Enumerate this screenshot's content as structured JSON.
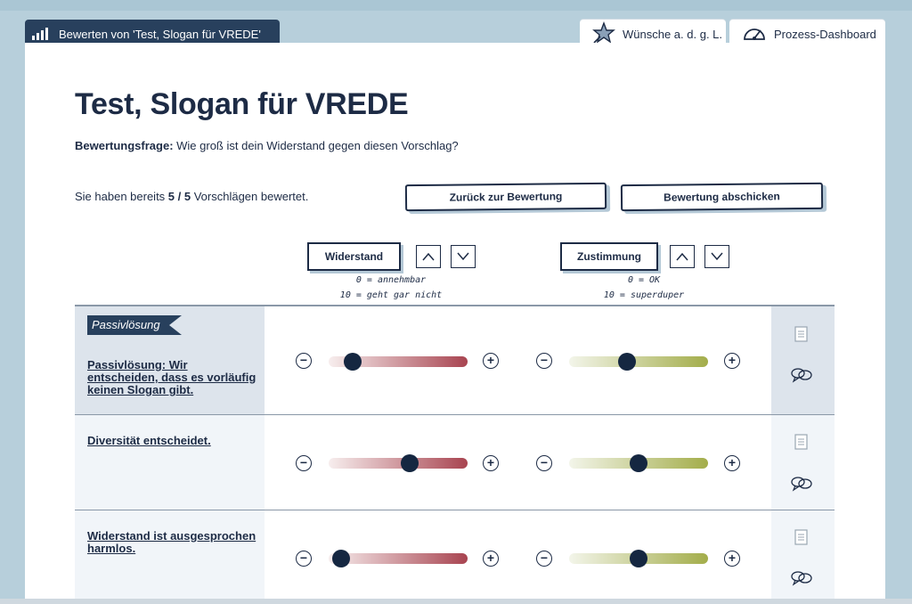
{
  "tabs": {
    "left_label": "Bewerten von 'Test, Slogan für VREDE'",
    "wishes_label": "Wünsche a. d. g. L.",
    "dashboard_label": "Prozess-Dashboard"
  },
  "title": "Test, Slogan für VREDE",
  "question": {
    "label": "Bewertungsfrage:",
    "text": " Wie groß ist dein Widerstand gegen diesen Vorschlag?"
  },
  "progress": {
    "prefix": "Sie haben bereits ",
    "count": "5",
    "total": " / 5",
    "suffix": " Vorschlägen bewertet."
  },
  "buttons": {
    "back": "Zurück zur Bewertung",
    "submit": "Bewertung abschicken"
  },
  "columns": {
    "resistance": {
      "label": "Widerstand",
      "min_text": "0 = annehmbar",
      "max_text": "10 = geht gar nicht"
    },
    "approval": {
      "label": "Zustimmung",
      "min_text": "0 = OK",
      "max_text": "10 = superduper"
    }
  },
  "rows": [
    {
      "badge": "Passivlösung",
      "title": "Passivlösung: Wir entscheiden, dass es vorläufig keinen Slogan gibt.",
      "resistance": 1,
      "approval": 4,
      "highlighted": true
    },
    {
      "badge": "",
      "title": "Diversität entscheidet.",
      "resistance": 6,
      "approval": 5,
      "highlighted": false
    },
    {
      "badge": "",
      "title": "Widerstand ist ausgesprochen harmlos.",
      "resistance": 0,
      "approval": 5,
      "highlighted": false
    }
  ],
  "icons": {
    "tab_left": "bar-chart-icon",
    "tab_wishes": "star-wand-icon",
    "tab_dashboard": "speedometer-icon",
    "sort_up": "chevron-up-icon",
    "sort_down": "chevron-down-icon",
    "decrease": "minus-circle-icon",
    "increase": "plus-circle-icon",
    "details": "document-icon",
    "comments": "speech-bubbles-icon"
  },
  "colors": {
    "navy": "#1d2b45",
    "tab_bg": "#28405d",
    "resistance_end": "#a84450",
    "approval_end": "#a3ad4a",
    "highlight_row": "#dde4ec"
  }
}
